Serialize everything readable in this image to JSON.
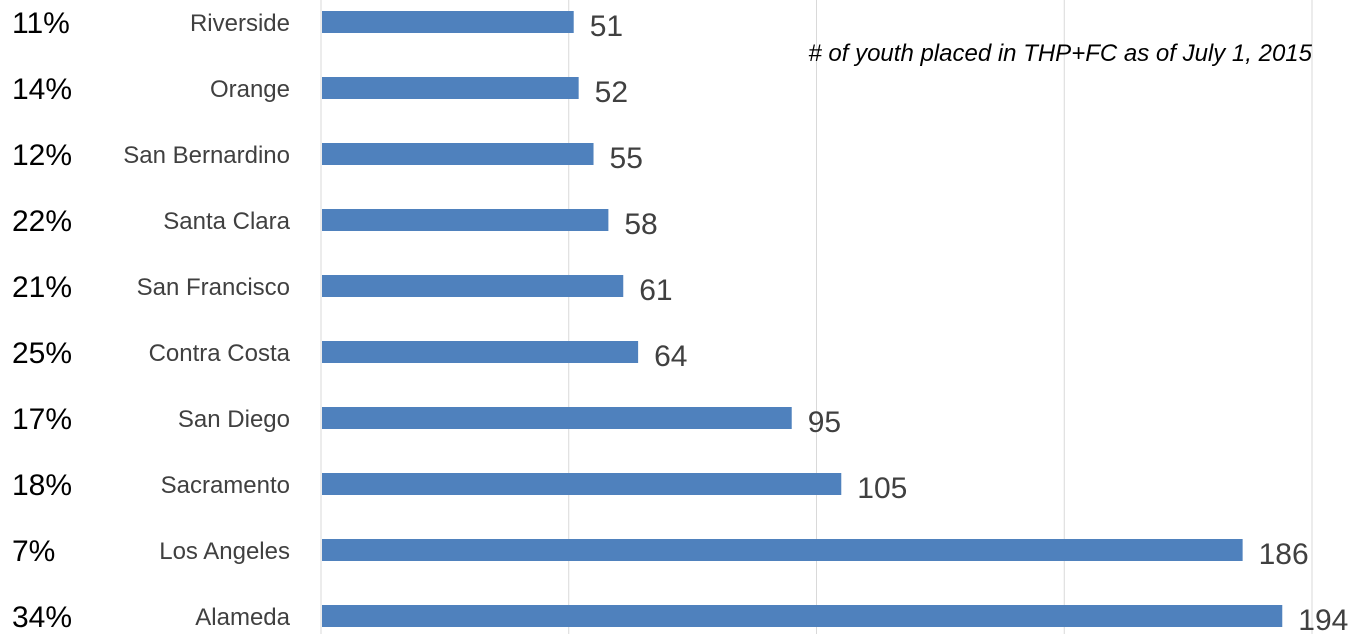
{
  "chart_data": {
    "type": "bar",
    "orientation": "horizontal",
    "title": "",
    "annotation": "# of youth placed in THP+FC as of July 1, 2015",
    "categories": [
      "Riverside",
      "Orange",
      "San Bernardino",
      "Santa Clara",
      "San Francisco",
      "Contra Costa",
      "San Diego",
      "Sacramento",
      "Los Angeles",
      "Alameda"
    ],
    "values": [
      51,
      52,
      55,
      58,
      61,
      64,
      95,
      105,
      186,
      194
    ],
    "value_labels": [
      "51",
      "52",
      "55",
      "58",
      "61",
      "64",
      "95",
      "105",
      "186",
      "194"
    ],
    "percent_labels": [
      "11%",
      "14%",
      "12%",
      "22%",
      "21%",
      "25%",
      "17%",
      "18%",
      "7%",
      "34%"
    ],
    "xlim": [
      0,
      200
    ],
    "gridlines": [
      50,
      100,
      150,
      200
    ],
    "grid": true,
    "bar_color": "#4F81BD",
    "xlabel": "",
    "ylabel": ""
  }
}
